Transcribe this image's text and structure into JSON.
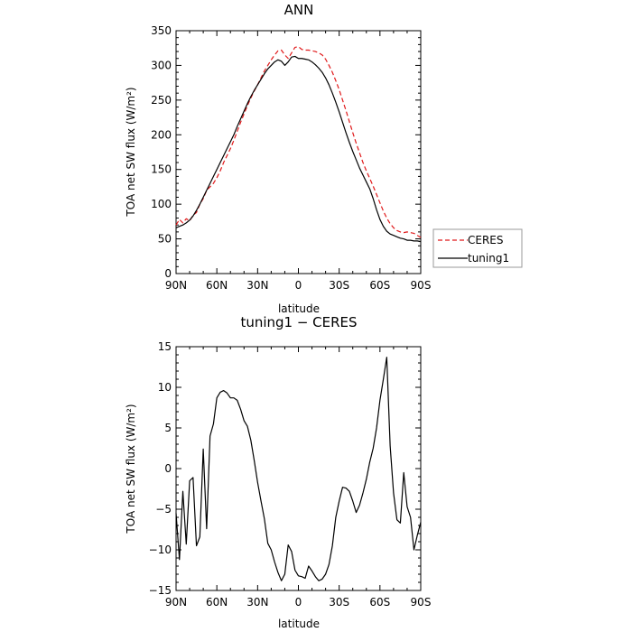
{
  "chart_data": [
    {
      "type": "line",
      "title": "ANN",
      "xlabel": "latitude",
      "ylabel": "TOA net SW flux (W/m²)",
      "xlim": [
        90,
        -90
      ],
      "ylim": [
        0,
        350
      ],
      "xticks": [
        90,
        60,
        30,
        0,
        -30,
        -60,
        -90
      ],
      "xtick_labels": [
        "90N",
        "60N",
        "30N",
        "0",
        "30S",
        "60S",
        "90S"
      ],
      "yticks": [
        0,
        50,
        100,
        150,
        200,
        250,
        300,
        350
      ],
      "ytick_labels": [
        "0",
        "50",
        "100",
        "150",
        "200",
        "250",
        "300",
        "350"
      ],
      "legend_position": "right-outside",
      "series": [
        {
          "name": "CERES",
          "color": "#e0191a",
          "style": "dashed",
          "x": [
            90,
            87.5,
            85,
            82.5,
            80,
            77.5,
            75,
            72.5,
            70,
            67.5,
            65,
            62.5,
            60,
            57.5,
            55,
            52.5,
            50,
            47.5,
            45,
            42.5,
            40,
            37.5,
            35,
            32.5,
            30,
            27.5,
            25,
            22.5,
            20,
            17.5,
            15,
            12.5,
            10,
            7.5,
            5,
            2.5,
            0,
            -2.5,
            -5,
            -7.5,
            -10,
            -12.5,
            -15,
            -17.5,
            -20,
            -22.5,
            -25,
            -27.5,
            -30,
            -32.5,
            -35,
            -37.5,
            -40,
            -42.5,
            -45,
            -47.5,
            -50,
            -52.5,
            -55,
            -57.5,
            -60,
            -62.5,
            -65,
            -67.5,
            -70,
            -72.5,
            -75,
            -77.5,
            -80,
            -82.5,
            -85,
            -87.5,
            -90
          ],
          "y": [
            70,
            78,
            73,
            79,
            76,
            84,
            88,
            100,
            108,
            120,
            125,
            130,
            138,
            148,
            160,
            170,
            180,
            192,
            205,
            218,
            230,
            242,
            253,
            263,
            272,
            282,
            292,
            300,
            308,
            315,
            321,
            322,
            315,
            310,
            318,
            326,
            327,
            323,
            322,
            322,
            321,
            320,
            318,
            315,
            309,
            300,
            290,
            278,
            265,
            250,
            235,
            219,
            203,
            188,
            174,
            160,
            148,
            137,
            126,
            114,
            102,
            90,
            80,
            72,
            66,
            62,
            60,
            59,
            60,
            59,
            58,
            55,
            52
          ]
        },
        {
          "name": "tuning1",
          "color": "#000000",
          "style": "solid",
          "x": [
            90,
            87.5,
            85,
            82.5,
            80,
            77.5,
            75,
            72.5,
            70,
            67.5,
            65,
            62.5,
            60,
            57.5,
            55,
            52.5,
            50,
            47.5,
            45,
            42.5,
            40,
            37.5,
            35,
            32.5,
            30,
            27.5,
            25,
            22.5,
            20,
            17.5,
            15,
            12.5,
            10,
            7.5,
            5,
            2.5,
            0,
            -2.5,
            -5,
            -7.5,
            -10,
            -12.5,
            -15,
            -17.5,
            -20,
            -22.5,
            -25,
            -27.5,
            -30,
            -32.5,
            -35,
            -37.5,
            -40,
            -42.5,
            -45,
            -47.5,
            -50,
            -52.5,
            -55,
            -57.5,
            -60,
            -62.5,
            -65,
            -67.5,
            -70,
            -72.5,
            -75,
            -77.5,
            -80,
            -82.5,
            -85,
            -87.5,
            -90
          ],
          "y": [
            66,
            68,
            70,
            73,
            77,
            83,
            91,
            100,
            110,
            120,
            130,
            140,
            150,
            160,
            170,
            180,
            190,
            200,
            212,
            223,
            234,
            245,
            255,
            264,
            272,
            280,
            288,
            295,
            300,
            305,
            308,
            306,
            300,
            305,
            312,
            313,
            310,
            310,
            309,
            308,
            305,
            301,
            296,
            290,
            282,
            272,
            260,
            247,
            233,
            218,
            203,
            189,
            176,
            164,
            152,
            142,
            132,
            122,
            108,
            92,
            78,
            68,
            61,
            57,
            55,
            53,
            51,
            50,
            48,
            48,
            47,
            47,
            46
          ]
        }
      ]
    },
    {
      "type": "line",
      "title": "tuning1 − CERES",
      "xlabel": "latitude",
      "ylabel": "TOA net SW flux (W/m²)",
      "xlim": [
        90,
        -90
      ],
      "ylim": [
        -15,
        15
      ],
      "xticks": [
        90,
        60,
        30,
        0,
        -30,
        -60,
        -90
      ],
      "xtick_labels": [
        "90N",
        "60N",
        "30N",
        "0",
        "30S",
        "60S",
        "90S"
      ],
      "yticks": [
        -15,
        -10,
        -5,
        0,
        5,
        10,
        15
      ],
      "ytick_labels": [
        "−15",
        "−10",
        "−5",
        "0",
        "5",
        "10",
        "15"
      ],
      "series": [
        {
          "name": "",
          "color": "#000000",
          "style": "solid",
          "x": [
            90,
            87.5,
            85,
            82.5,
            80,
            77.5,
            75,
            72.5,
            70,
            67.5,
            65,
            62.5,
            60,
            57.5,
            55,
            52.5,
            50,
            47.5,
            45,
            42.5,
            40,
            37.5,
            35,
            32.5,
            30,
            27.5,
            25,
            22.5,
            20,
            17.5,
            15,
            12.5,
            10,
            7.5,
            5,
            2.5,
            0,
            -2.5,
            -5,
            -7.5,
            -10,
            -12.5,
            -15,
            -17.5,
            -20,
            -22.5,
            -25,
            -27.5,
            -30,
            -32.5,
            -35,
            -37.5,
            -40,
            -42.5,
            -45,
            -47.5,
            -50,
            -52.5,
            -55,
            -57.5,
            -60,
            -62.5,
            -65,
            -67.5,
            -70,
            -72.5,
            -75,
            -77.5,
            -80,
            -82.5,
            -85,
            -87.5,
            -90
          ],
          "y": [
            -5.5,
            -11.2,
            -2.8,
            -9.3,
            -1.5,
            -1.1,
            -9.5,
            -8.4,
            2.4,
            -7.4,
            4.0,
            5.5,
            8.7,
            9.4,
            9.6,
            9.3,
            8.7,
            8.7,
            8.4,
            7.3,
            5.9,
            5.2,
            3.5,
            1.0,
            -1.7,
            -4.0,
            -6.2,
            -9.2,
            -10.0,
            -11.5,
            -12.8,
            -13.8,
            -13.0,
            -9.4,
            -10.2,
            -12.5,
            -13.2,
            -13.3,
            -13.5,
            -12.0,
            -12.6,
            -13.3,
            -13.8,
            -13.6,
            -13.0,
            -11.8,
            -9.5,
            -6.0,
            -4.0,
            -2.3,
            -2.4,
            -2.8,
            -4.0,
            -5.4,
            -4.5,
            -3.0,
            -1.3,
            0.8,
            2.5,
            5.0,
            8.4,
            11.0,
            13.7,
            2.8,
            -3.0,
            -6.3,
            -6.7,
            -0.5,
            -4.7,
            -6.0,
            -10.0,
            -8.2,
            -6.6
          ]
        }
      ]
    }
  ]
}
